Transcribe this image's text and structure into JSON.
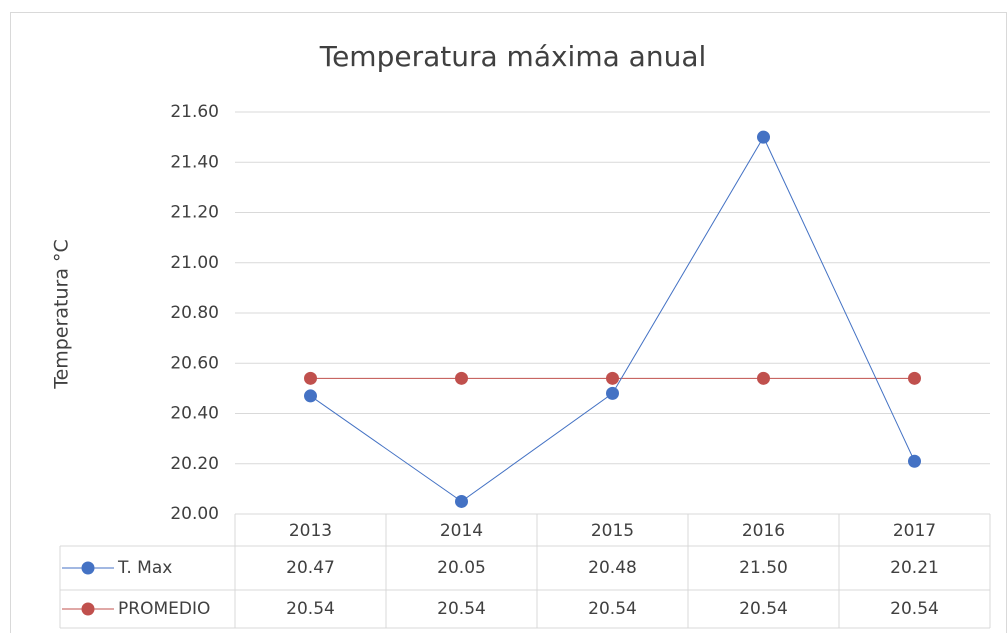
{
  "chart_data": {
    "type": "line",
    "title": "Temperatura máxima anual",
    "y_label": "Temperatura °C",
    "categories": [
      "2013",
      "2014",
      "2015",
      "2016",
      "2017"
    ],
    "series": [
      {
        "name": "T. Max",
        "color": "#4472c4",
        "values": [
          20.47,
          20.05,
          20.48,
          21.5,
          20.21
        ],
        "value_labels": [
          "20.47",
          "20.05",
          "20.48",
          "21.50",
          "20.21"
        ]
      },
      {
        "name": "PROMEDIO",
        "color": "#c0504d",
        "values": [
          20.54,
          20.54,
          20.54,
          20.54,
          20.54
        ],
        "value_labels": [
          "20.54",
          "20.54",
          "20.54",
          "20.54",
          "20.54"
        ]
      }
    ],
    "ylim": [
      20,
      21.6
    ],
    "yticks": [
      {
        "value": 20,
        "label": "20.00"
      },
      {
        "value": 20.2,
        "label": "20.20"
      },
      {
        "value": 20.4,
        "label": "20.40"
      },
      {
        "value": 20.6,
        "label": "20.60"
      },
      {
        "value": 20.8,
        "label": "20.80"
      },
      {
        "value": 21,
        "label": "21.00"
      },
      {
        "value": 21.2,
        "label": "21.20"
      },
      {
        "value": 21.4,
        "label": "21.40"
      },
      {
        "value": 21.6,
        "label": "21.60"
      }
    ],
    "grid": true,
    "data_table": true
  }
}
